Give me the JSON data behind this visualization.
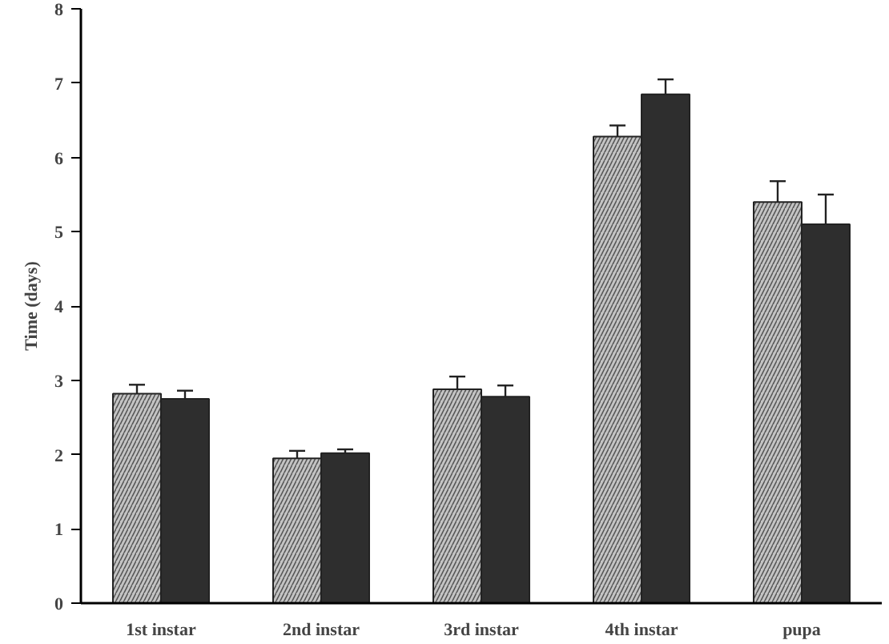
{
  "chart_data": {
    "type": "bar",
    "ylabel": "Time (days)",
    "categories": [
      "1st instar",
      "2nd instar",
      "3rd instar",
      "4th instar",
      "pupa"
    ],
    "series": [
      {
        "color": "#c4c4c4",
        "values": [
          2.82,
          1.95,
          2.88,
          6.28,
          5.4
        ],
        "errors": [
          [
            2.82,
            2.94
          ],
          [
            1.95,
            2.05
          ],
          [
            2.88,
            3.05
          ],
          [
            6.28,
            6.43
          ],
          [
            5.4,
            5.68
          ]
        ]
      },
      {
        "color": "#2e2e2e",
        "values": [
          2.75,
          2.02,
          2.78,
          6.85,
          5.1
        ],
        "errors": [
          [
            2.75,
            2.86
          ],
          [
            2.02,
            2.07
          ],
          [
            2.78,
            2.93
          ],
          [
            6.85,
            7.05
          ],
          [
            5.1,
            5.5
          ]
        ]
      }
    ],
    "ylim": [
      0,
      8
    ],
    "yticks": [
      0,
      1,
      2,
      3,
      4,
      5,
      6,
      7,
      8
    ],
    "grid": false
  }
}
